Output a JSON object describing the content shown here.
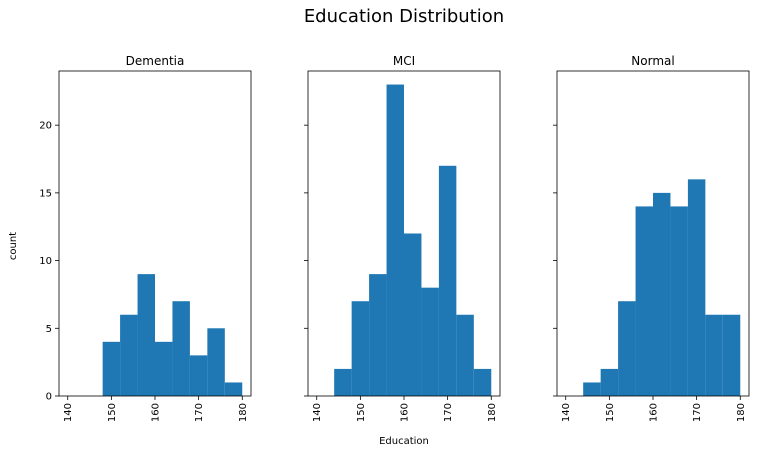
{
  "figure": {
    "title": "Education Distribution",
    "xlabel": "Education",
    "ylabel": "count"
  },
  "chart_data": [
    {
      "type": "bar",
      "title": "Dementia",
      "xlabel": "Education",
      "ylabel": "count",
      "bin_edges": [
        148,
        152,
        156,
        160,
        164,
        168,
        172,
        176,
        180
      ],
      "values": [
        4,
        6,
        9,
        4,
        7,
        3,
        5,
        1
      ],
      "xlim": [
        138,
        182
      ],
      "ylim": [
        0,
        24
      ],
      "xticks": [
        140,
        150,
        160,
        170,
        180
      ],
      "yticks": [
        0,
        5,
        10,
        15,
        20
      ],
      "color": "#1f77b4"
    },
    {
      "type": "bar",
      "title": "MCI",
      "xlabel": "Education",
      "ylabel": "count",
      "bin_edges": [
        144,
        148,
        152,
        156,
        160,
        164,
        168,
        172,
        176,
        180
      ],
      "values": [
        2,
        7,
        9,
        23,
        12,
        8,
        17,
        6,
        2
      ],
      "xlim": [
        138,
        182
      ],
      "ylim": [
        0,
        24
      ],
      "xticks": [
        140,
        150,
        160,
        170,
        180
      ],
      "yticks": [
        0,
        5,
        10,
        15,
        20
      ],
      "color": "#1f77b4"
    },
    {
      "type": "bar",
      "title": "Normal",
      "xlabel": "Education",
      "ylabel": "count",
      "bin_edges": [
        144,
        148,
        152,
        156,
        160,
        164,
        168,
        172,
        176,
        180
      ],
      "values": [
        1,
        2,
        7,
        14,
        15,
        14,
        16,
        6,
        6
      ],
      "xlim": [
        138,
        182
      ],
      "ylim": [
        0,
        24
      ],
      "xticks": [
        140,
        150,
        160,
        170,
        180
      ],
      "yticks": [
        0,
        5,
        10,
        15,
        20
      ],
      "color": "#1f77b4"
    }
  ]
}
